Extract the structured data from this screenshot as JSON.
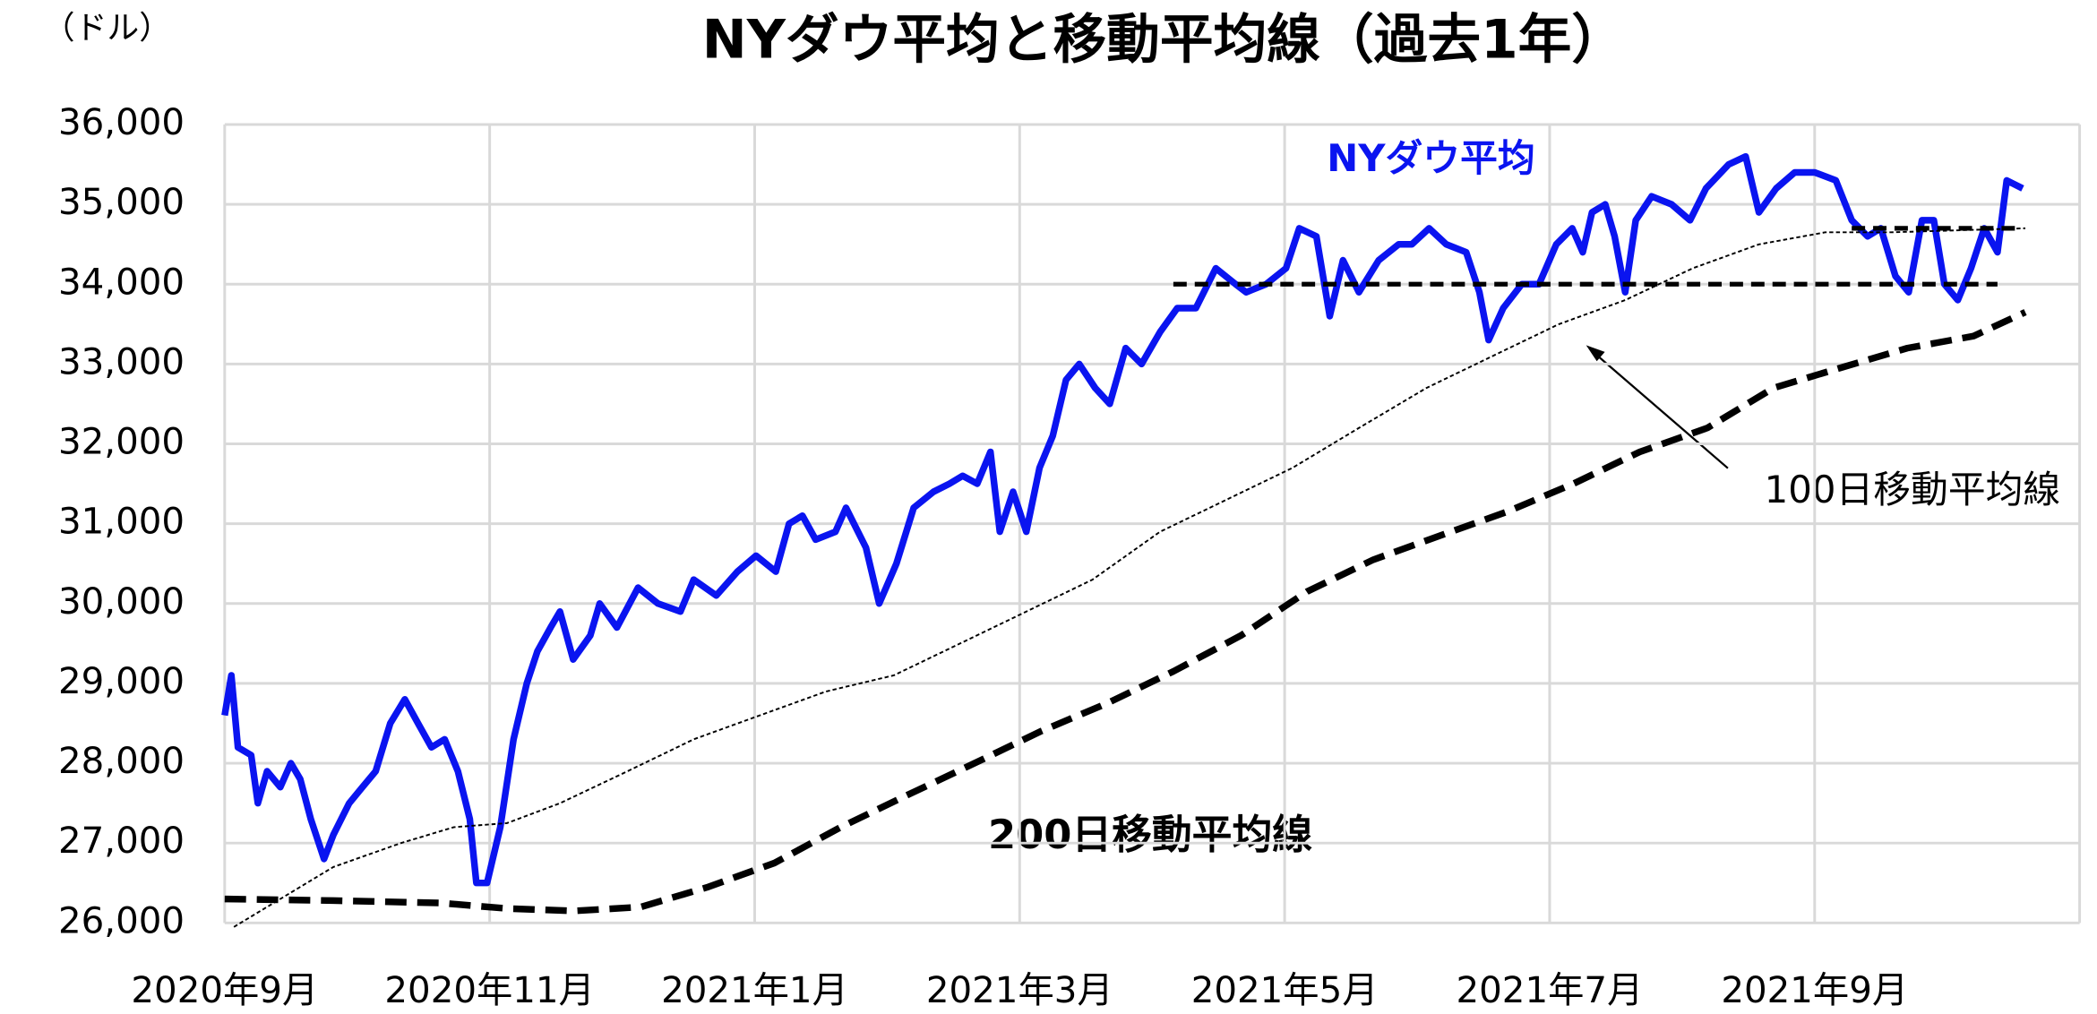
{
  "chart_data": {
    "type": "line",
    "title": "NYダウ平均と移動平均線（過去1年）",
    "y_axis_label": "（ドル）",
    "xlim": [
      0,
      14
    ],
    "xticks": [
      {
        "value": 0,
        "label": "2020年9月"
      },
      {
        "value": 2,
        "label": "2020年11月"
      },
      {
        "value": 4,
        "label": "2021年1月"
      },
      {
        "value": 6,
        "label": "2021年3月"
      },
      {
        "value": 8,
        "label": "2021年5月"
      },
      {
        "value": 10,
        "label": "2021年7月"
      },
      {
        "value": 12,
        "label": "2021年9月"
      }
    ],
    "ylim": [
      26000,
      36000
    ],
    "yticks": [
      {
        "value": 26000,
        "label": "26,000"
      },
      {
        "value": 27000,
        "label": "27,000"
      },
      {
        "value": 28000,
        "label": "28,000"
      },
      {
        "value": 29000,
        "label": "29,000"
      },
      {
        "value": 30000,
        "label": "30,000"
      },
      {
        "value": 31000,
        "label": "31,000"
      },
      {
        "value": 32000,
        "label": "32,000"
      },
      {
        "value": 33000,
        "label": "33,000"
      },
      {
        "value": 34000,
        "label": "34,000"
      },
      {
        "value": 35000,
        "label": "35,000"
      },
      {
        "value": 36000,
        "label": "36,000"
      }
    ],
    "grid": true,
    "series": [
      {
        "name": "NYダウ平均",
        "color": "#0a14f0",
        "style": "solid",
        "x": [
          0,
          0.05,
          0.1,
          0.2,
          0.25,
          0.32,
          0.42,
          0.5,
          0.57,
          0.65,
          0.75,
          0.82,
          0.94,
          1.04,
          1.14,
          1.25,
          1.36,
          1.46,
          1.56,
          1.66,
          1.76,
          1.85,
          1.9,
          1.98,
          2.08,
          2.18,
          2.28,
          2.36,
          2.46,
          2.53,
          2.63,
          2.76,
          2.83,
          2.96,
          3.12,
          3.27,
          3.44,
          3.54,
          3.71,
          3.87,
          4.01,
          4.16,
          4.26,
          4.36,
          4.46,
          4.61,
          4.69,
          4.84,
          4.94,
          5.07,
          5.2,
          5.35,
          5.47,
          5.57,
          5.68,
          5.78,
          5.85,
          5.95,
          6.05,
          6.15,
          6.25,
          6.35,
          6.45,
          6.57,
          6.68,
          6.8,
          6.92,
          7.06,
          7.19,
          7.33,
          7.48,
          7.63,
          7.71,
          7.86,
          8.01,
          8.11,
          8.24,
          8.34,
          8.44,
          8.56,
          8.71,
          8.86,
          8.96,
          9.09,
          9.22,
          9.37,
          9.47,
          9.54,
          9.65,
          9.79,
          9.92,
          10.05,
          10.17,
          10.25,
          10.32,
          10.42,
          10.49,
          10.57,
          10.65,
          10.77,
          10.92,
          11.06,
          11.18,
          11.35,
          11.48,
          11.58,
          11.71,
          11.85,
          12.0,
          12.16,
          12.28,
          12.4,
          12.5,
          12.61,
          12.71,
          12.81,
          12.9,
          12.98,
          13.08,
          13.18,
          13.28,
          13.38,
          13.45,
          13.57
        ],
        "values": [
          28600,
          29100,
          28200,
          28100,
          27500,
          27900,
          27700,
          28000,
          27800,
          27300,
          26800,
          27100,
          27500,
          27700,
          27900,
          28500,
          28800,
          28500,
          28200,
          28300,
          27900,
          27300,
          26500,
          26500,
          27200,
          28300,
          29000,
          29400,
          29700,
          29900,
          29300,
          29600,
          30000,
          29700,
          30200,
          30000,
          29900,
          30300,
          30100,
          30400,
          30600,
          30400,
          31000,
          31100,
          30800,
          30900,
          31200,
          30700,
          30000,
          30500,
          31200,
          31400,
          31500,
          31600,
          31500,
          31900,
          30900,
          31400,
          30900,
          31700,
          32100,
          32800,
          33000,
          32700,
          32500,
          33200,
          33000,
          33400,
          33700,
          33700,
          34200,
          34000,
          33900,
          34000,
          34200,
          34700,
          34600,
          33600,
          34300,
          33900,
          34300,
          34500,
          34500,
          34700,
          34500,
          34400,
          33900,
          33300,
          33700,
          34000,
          34000,
          34500,
          34700,
          34400,
          34900,
          35000,
          34600,
          33900,
          34800,
          35100,
          35000,
          34800,
          35200,
          35500,
          35600,
          34900,
          35200,
          35400,
          35400,
          35300,
          34800,
          34600,
          34700,
          34100,
          33900,
          34800,
          34800,
          34000,
          33800,
          34200,
          34700,
          34400,
          35300,
          35200
        ]
      },
      {
        "name": "100日移動平均線",
        "color": "#000000",
        "style": "dotted",
        "x": [
          0.07,
          0.82,
          1.33,
          1.73,
          2.13,
          2.53,
          3.04,
          3.54,
          4.04,
          4.54,
          5.05,
          5.55,
          6.05,
          6.55,
          7.06,
          7.56,
          8.06,
          8.56,
          9.07,
          9.57,
          10.07,
          10.57,
          11.08,
          11.58,
          12.08,
          12.58,
          13.59
        ],
        "values": [
          25950,
          26700,
          27000,
          27200,
          27250,
          27500,
          27900,
          28300,
          28600,
          28900,
          29100,
          29500,
          29900,
          30300,
          30900,
          31300,
          31700,
          32200,
          32700,
          33100,
          33500,
          33800,
          34200,
          34500,
          34650,
          34650,
          34700
        ]
      },
      {
        "name": "200日移動平均線",
        "color": "#000000",
        "style": "dashed",
        "x": [
          0,
          0.82,
          1.63,
          2.14,
          2.64,
          3.14,
          3.65,
          4.15,
          4.65,
          5.15,
          5.66,
          6.16,
          6.66,
          7.16,
          7.67,
          8.17,
          8.67,
          9.17,
          9.68,
          10.18,
          10.68,
          11.19,
          11.69,
          12.19,
          12.7,
          13.2,
          13.59
        ],
        "values": [
          26300,
          26280,
          26250,
          26180,
          26150,
          26200,
          26450,
          26750,
          27200,
          27600,
          28000,
          28400,
          28750,
          29150,
          29600,
          30150,
          30550,
          30850,
          31150,
          31500,
          31900,
          32200,
          32700,
          32950,
          33200,
          33350,
          33650
        ]
      }
    ],
    "reference_lines": [
      {
        "value": 34000,
        "x": [
          7.16,
          13.38
        ]
      },
      {
        "value": 34700,
        "x": [
          12.28,
          13.57
        ]
      }
    ]
  }
}
